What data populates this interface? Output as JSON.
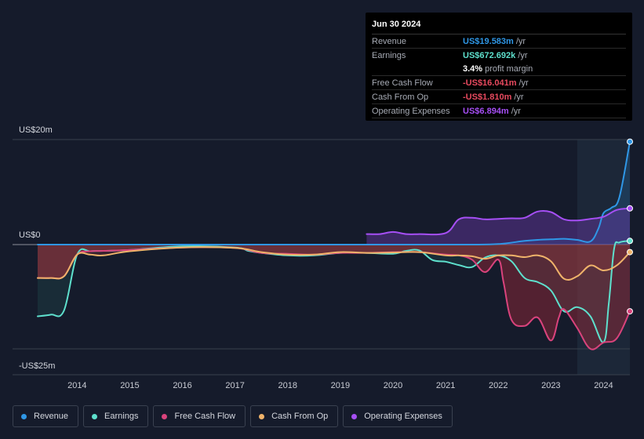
{
  "tooltip": {
    "date": "Jun 30 2024",
    "rows": [
      {
        "name": "Revenue",
        "value": "US$19.583m",
        "unit": "/yr",
        "color": "#2f97e6"
      },
      {
        "name": "Earnings",
        "value": "US$672.692k",
        "unit": "/yr",
        "color": "#5ee0cd"
      },
      {
        "name": "",
        "value": "3.4%",
        "unit": "profit margin",
        "color": "#ffffff"
      },
      {
        "name": "Free Cash Flow",
        "value": "-US$16.041m",
        "unit": "/yr",
        "color": "#e84a5f"
      },
      {
        "name": "Cash From Op",
        "value": "-US$1.810m",
        "unit": "/yr",
        "color": "#e84a5f"
      },
      {
        "name": "Operating Expenses",
        "value": "US$6.894m",
        "unit": "/yr",
        "color": "#a64ff5"
      }
    ]
  },
  "legend": [
    {
      "label": "Revenue",
      "color": "#2f97e6"
    },
    {
      "label": "Earnings",
      "color": "#5ee0cd"
    },
    {
      "label": "Free Cash Flow",
      "color": "#d9437c"
    },
    {
      "label": "Cash From Op",
      "color": "#f0b36a"
    },
    {
      "label": "Operating Expenses",
      "color": "#a64ff5"
    }
  ],
  "chart_data": {
    "type": "line",
    "title": "",
    "units": "USD millions",
    "ylim": [
      -25,
      20
    ],
    "y_tick_labels": [
      {
        "label": "US$20m",
        "value": 20
      },
      {
        "label": "US$0",
        "value": 0
      },
      {
        "label": "-US$25m",
        "value": -25
      }
    ],
    "x_tick_labels": [
      "2014",
      "2015",
      "2016",
      "2017",
      "2018",
      "2019",
      "2020",
      "2021",
      "2022",
      "2023",
      "2024"
    ],
    "x_tick_values": [
      2014,
      2015,
      2016,
      2017,
      2018,
      2019,
      2020,
      2021,
      2022,
      2023,
      2024
    ],
    "xlim": [
      2013.25,
      2024.5
    ],
    "highlight_start": 2023.5,
    "series": [
      {
        "name": "Revenue",
        "color": "#2f97e6",
        "x": [
          2013.25,
          2019.5,
          2020.5,
          2021.0,
          2021.5,
          2022.0,
          2022.5,
          2022.75,
          2023.0,
          2023.25,
          2023.5,
          2023.75,
          2023.9,
          2024.0,
          2024.15,
          2024.3,
          2024.5
        ],
        "y": [
          0.0,
          0.0,
          0.0,
          0.0,
          0.0,
          0.1,
          0.7,
          0.9,
          1.0,
          1.1,
          0.9,
          0.6,
          3.0,
          6.0,
          7.0,
          9.0,
          19.6
        ]
      },
      {
        "name": "Operating Expenses",
        "color": "#a64ff5",
        "x": [
          2019.5,
          2019.75,
          2020.0,
          2020.25,
          2020.5,
          2021.0,
          2021.25,
          2021.5,
          2021.75,
          2022.0,
          2022.25,
          2022.5,
          2022.75,
          2023.0,
          2023.25,
          2023.5,
          2023.75,
          2024.0,
          2024.25,
          2024.5
        ],
        "y": [
          2.0,
          2.0,
          2.4,
          2.0,
          2.0,
          2.2,
          4.8,
          5.1,
          4.8,
          4.9,
          5.0,
          5.1,
          6.3,
          6.2,
          4.8,
          4.6,
          4.9,
          5.3,
          6.6,
          6.9
        ]
      },
      {
        "name": "Earnings",
        "color": "#5ee0cd",
        "x": [
          2013.25,
          2013.5,
          2013.75,
          2014.0,
          2014.25,
          2014.5,
          2015.0,
          2016.0,
          2017.0,
          2017.25,
          2017.5,
          2018.0,
          2018.5,
          2019.0,
          2019.5,
          2020.0,
          2020.25,
          2020.5,
          2020.75,
          2021.0,
          2021.25,
          2021.5,
          2021.75,
          2022.0,
          2022.25,
          2022.5,
          2022.75,
          2023.0,
          2023.25,
          2023.5,
          2023.75,
          2024.0,
          2024.1,
          2024.2,
          2024.3,
          2024.5
        ],
        "y": [
          -17.2,
          -16.8,
          -15.8,
          -2.4,
          -1.6,
          -1.5,
          -1.3,
          -0.4,
          -0.7,
          -1.5,
          -2.0,
          -2.6,
          -2.6,
          -2.0,
          -2.0,
          -2.2,
          -1.5,
          -1.4,
          -3.7,
          -4.1,
          -4.9,
          -5.4,
          -3.1,
          -2.6,
          -4.0,
          -8.0,
          -9.0,
          -11.0,
          -16.0,
          -15.0,
          -17.2,
          -23.4,
          -14.0,
          -1.0,
          0.4,
          0.7
        ]
      },
      {
        "name": "Free Cash Flow",
        "color": "#d9437c",
        "x": [
          2013.25,
          2013.5,
          2013.75,
          2014.0,
          2014.25,
          2014.5,
          2015.0,
          2016.0,
          2017.0,
          2017.5,
          2018.0,
          2018.5,
          2019.0,
          2019.5,
          2020.0,
          2020.5,
          2021.0,
          2021.25,
          2021.5,
          2021.75,
          2022.0,
          2022.1,
          2022.25,
          2022.5,
          2022.75,
          2023.0,
          2023.15,
          2023.25,
          2023.5,
          2023.75,
          2024.0,
          2024.25,
          2024.5
        ],
        "y": [
          -8.0,
          -8.0,
          -7.6,
          -2.4,
          -1.6,
          -1.5,
          -1.3,
          -0.7,
          -0.8,
          -2.0,
          -2.2,
          -2.4,
          -2.0,
          -2.0,
          -1.8,
          -1.8,
          -2.4,
          -2.6,
          -3.6,
          -6.6,
          -3.6,
          -9.0,
          -18.0,
          -19.5,
          -17.5,
          -23.0,
          -17.5,
          -15.5,
          -20.0,
          -25.0,
          -23.5,
          -22.5,
          -16.0
        ]
      },
      {
        "name": "Cash From Op",
        "color": "#f0b36a",
        "x": [
          2013.25,
          2013.5,
          2013.75,
          2014.0,
          2014.25,
          2014.5,
          2015.0,
          2016.0,
          2017.0,
          2017.5,
          2018.0,
          2018.5,
          2019.0,
          2019.5,
          2020.0,
          2020.5,
          2021.0,
          2021.25,
          2021.5,
          2021.75,
          2022.0,
          2022.25,
          2022.5,
          2022.75,
          2023.0,
          2023.25,
          2023.5,
          2023.75,
          2024.0,
          2024.25,
          2024.5
        ],
        "y": [
          -8.0,
          -8.0,
          -7.6,
          -2.4,
          -2.4,
          -2.6,
          -1.6,
          -0.7,
          -0.8,
          -1.8,
          -2.4,
          -2.4,
          -1.8,
          -2.0,
          -1.9,
          -1.8,
          -2.6,
          -2.6,
          -2.8,
          -3.4,
          -2.6,
          -2.6,
          -3.0,
          -2.6,
          -4.0,
          -8.2,
          -7.6,
          -5.0,
          -6.2,
          -5.0,
          -1.8
        ]
      }
    ]
  }
}
